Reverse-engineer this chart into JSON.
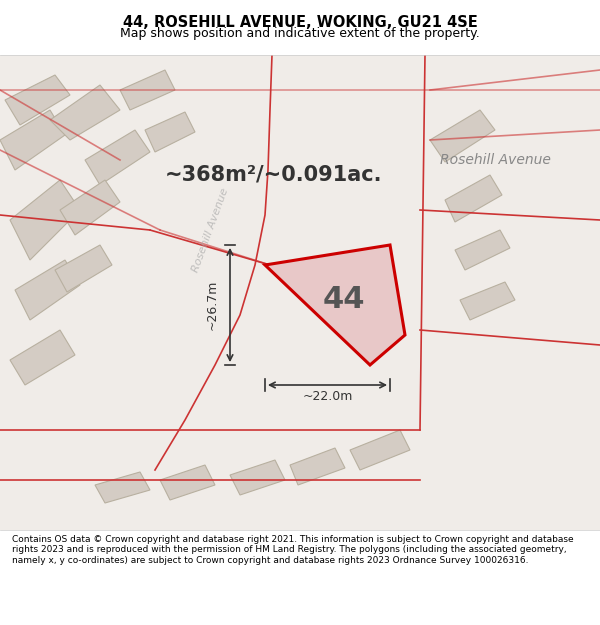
{
  "title_line1": "44, ROSEHILL AVENUE, WOKING, GU21 4SE",
  "title_line2": "Map shows position and indicative extent of the property.",
  "footer_text": "Contains OS data © Crown copyright and database right 2021. This information is subject to Crown copyright and database rights 2023 and is reproduced with the permission of HM Land Registry. The polygons (including the associated geometry, namely x, y co-ordinates) are subject to Crown copyright and database rights 2023 Ordnance Survey 100026316.",
  "area_text": "~368m²/~0.091ac.",
  "street_label": "Rosehill Avenue",
  "road_label_angled": "Rosehill Avenue",
  "number_label": "44",
  "dim_width": "~22.0m",
  "dim_height": "~26.7m",
  "bg_color": "#f0ece8",
  "map_bg": "#f0ece8",
  "property_fill": "#e8c8c8",
  "property_edge": "#cc0000",
  "road_line_color": "#cc3333",
  "building_fill": "#d8d0c8",
  "building_edge": "#b8b0a8",
  "title_bg": "#ffffff",
  "footer_bg": "#ffffff"
}
